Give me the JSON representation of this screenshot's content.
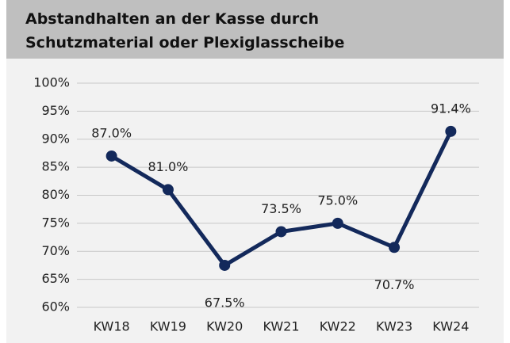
{
  "chart_data": {
    "type": "line",
    "title": [
      "Abstandhalten an der Kasse durch",
      "Schutzmaterial oder Plexiglasscheibe"
    ],
    "categories": [
      "KW18",
      "KW19",
      "KW20",
      "KW21",
      "KW22",
      "KW23",
      "KW24"
    ],
    "series": [
      {
        "name": "Abstandhalten",
        "color": "#13295b",
        "values": [
          87.0,
          81.0,
          67.5,
          73.5,
          75.0,
          70.7,
          91.4
        ],
        "value_labels": [
          "87.0%",
          "81.0%",
          "67.5%",
          "73.5%",
          "75.0%",
          "70.7%",
          "91.4%"
        ]
      }
    ],
    "ylim": [
      60,
      100
    ],
    "yticks": [
      {
        "value": 60,
        "label": "60%"
      },
      {
        "value": 65,
        "label": "65%"
      },
      {
        "value": 70,
        "label": "70%"
      },
      {
        "value": 75,
        "label": "75%"
      },
      {
        "value": 80,
        "label": "80%"
      },
      {
        "value": 85,
        "label": "85%"
      },
      {
        "value": 90,
        "label": "90%"
      },
      {
        "value": 95,
        "label": "95%"
      },
      {
        "value": 100,
        "label": "100%"
      }
    ],
    "grid": true
  }
}
